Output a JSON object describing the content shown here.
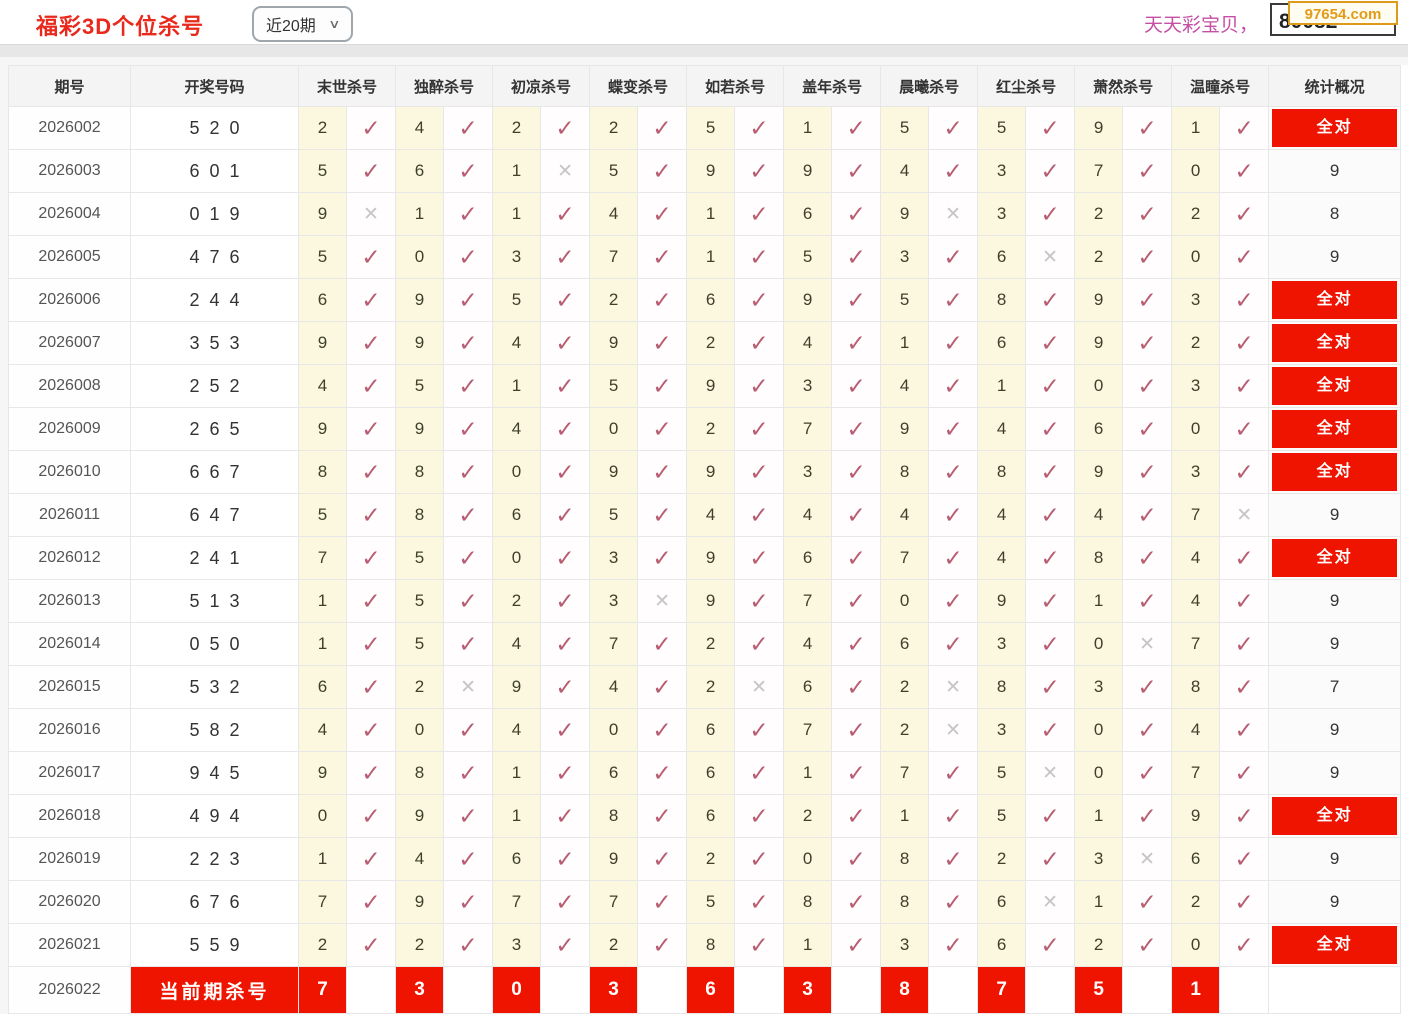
{
  "header": {
    "title": "福彩3D个位杀号",
    "period_select": {
      "value": "近20期"
    },
    "promo_text": "天天彩宝贝，",
    "contact_number": "80082",
    "watermark": "97654.com"
  },
  "colors": {
    "title_red": "#e8291c",
    "badge_red": "#ee1400",
    "check_pink": "#b85c72",
    "cross_gray": "#c6c6c6",
    "kill_number_cell_bg": "#fbf8df",
    "promo_pink": "#c44fa5",
    "watermark_orange": "#e39b17"
  },
  "table": {
    "columns": {
      "period": "期号",
      "draw": "开奖号码",
      "kills": [
        "末世杀号",
        "独醉杀号",
        "初凉杀号",
        "蝶变杀号",
        "如若杀号",
        "盖年杀号",
        "晨曦杀号",
        "红尘杀号",
        "萧然杀号",
        "温瞳杀号"
      ],
      "stats": "统计概况"
    },
    "marks": {
      "correct": "✓",
      "wrong": "✕"
    },
    "all_correct_label": "全对",
    "rows": [
      {
        "period": "2026002",
        "draw": "520",
        "kills": [
          [
            2,
            1
          ],
          [
            4,
            1
          ],
          [
            2,
            1
          ],
          [
            2,
            1
          ],
          [
            5,
            1
          ],
          [
            1,
            1
          ],
          [
            5,
            1
          ],
          [
            5,
            1
          ],
          [
            9,
            1
          ],
          [
            1,
            1
          ]
        ],
        "stat": "全对"
      },
      {
        "period": "2026003",
        "draw": "601",
        "kills": [
          [
            5,
            1
          ],
          [
            6,
            1
          ],
          [
            1,
            0
          ],
          [
            5,
            1
          ],
          [
            9,
            1
          ],
          [
            9,
            1
          ],
          [
            4,
            1
          ],
          [
            3,
            1
          ],
          [
            7,
            1
          ],
          [
            0,
            1
          ]
        ],
        "stat": "9"
      },
      {
        "period": "2026004",
        "draw": "019",
        "kills": [
          [
            9,
            0
          ],
          [
            1,
            1
          ],
          [
            1,
            1
          ],
          [
            4,
            1
          ],
          [
            1,
            1
          ],
          [
            6,
            1
          ],
          [
            9,
            0
          ],
          [
            3,
            1
          ],
          [
            2,
            1
          ],
          [
            2,
            1
          ]
        ],
        "stat": "8"
      },
      {
        "period": "2026005",
        "draw": "476",
        "kills": [
          [
            5,
            1
          ],
          [
            0,
            1
          ],
          [
            3,
            1
          ],
          [
            7,
            1
          ],
          [
            1,
            1
          ],
          [
            5,
            1
          ],
          [
            3,
            1
          ],
          [
            6,
            0
          ],
          [
            2,
            1
          ],
          [
            0,
            1
          ]
        ],
        "stat": "9"
      },
      {
        "period": "2026006",
        "draw": "244",
        "kills": [
          [
            6,
            1
          ],
          [
            9,
            1
          ],
          [
            5,
            1
          ],
          [
            2,
            1
          ],
          [
            6,
            1
          ],
          [
            9,
            1
          ],
          [
            5,
            1
          ],
          [
            8,
            1
          ],
          [
            9,
            1
          ],
          [
            3,
            1
          ]
        ],
        "stat": "全对"
      },
      {
        "period": "2026007",
        "draw": "353",
        "kills": [
          [
            9,
            1
          ],
          [
            9,
            1
          ],
          [
            4,
            1
          ],
          [
            9,
            1
          ],
          [
            2,
            1
          ],
          [
            4,
            1
          ],
          [
            1,
            1
          ],
          [
            6,
            1
          ],
          [
            9,
            1
          ],
          [
            2,
            1
          ]
        ],
        "stat": "全对"
      },
      {
        "period": "2026008",
        "draw": "252",
        "kills": [
          [
            4,
            1
          ],
          [
            5,
            1
          ],
          [
            1,
            1
          ],
          [
            5,
            1
          ],
          [
            9,
            1
          ],
          [
            3,
            1
          ],
          [
            4,
            1
          ],
          [
            1,
            1
          ],
          [
            0,
            1
          ],
          [
            3,
            1
          ]
        ],
        "stat": "全对"
      },
      {
        "period": "2026009",
        "draw": "265",
        "kills": [
          [
            9,
            1
          ],
          [
            9,
            1
          ],
          [
            4,
            1
          ],
          [
            0,
            1
          ],
          [
            2,
            1
          ],
          [
            7,
            1
          ],
          [
            9,
            1
          ],
          [
            4,
            1
          ],
          [
            6,
            1
          ],
          [
            0,
            1
          ]
        ],
        "stat": "全对"
      },
      {
        "period": "2026010",
        "draw": "667",
        "kills": [
          [
            8,
            1
          ],
          [
            8,
            1
          ],
          [
            0,
            1
          ],
          [
            9,
            1
          ],
          [
            9,
            1
          ],
          [
            3,
            1
          ],
          [
            8,
            1
          ],
          [
            8,
            1
          ],
          [
            9,
            1
          ],
          [
            3,
            1
          ]
        ],
        "stat": "全对"
      },
      {
        "period": "2026011",
        "draw": "647",
        "kills": [
          [
            5,
            1
          ],
          [
            8,
            1
          ],
          [
            6,
            1
          ],
          [
            5,
            1
          ],
          [
            4,
            1
          ],
          [
            4,
            1
          ],
          [
            4,
            1
          ],
          [
            4,
            1
          ],
          [
            4,
            1
          ],
          [
            7,
            0
          ]
        ],
        "stat": "9"
      },
      {
        "period": "2026012",
        "draw": "241",
        "kills": [
          [
            7,
            1
          ],
          [
            5,
            1
          ],
          [
            0,
            1
          ],
          [
            3,
            1
          ],
          [
            9,
            1
          ],
          [
            6,
            1
          ],
          [
            7,
            1
          ],
          [
            4,
            1
          ],
          [
            8,
            1
          ],
          [
            4,
            1
          ]
        ],
        "stat": "全对"
      },
      {
        "period": "2026013",
        "draw": "513",
        "kills": [
          [
            1,
            1
          ],
          [
            5,
            1
          ],
          [
            2,
            1
          ],
          [
            3,
            0
          ],
          [
            9,
            1
          ],
          [
            7,
            1
          ],
          [
            0,
            1
          ],
          [
            9,
            1
          ],
          [
            1,
            1
          ],
          [
            4,
            1
          ]
        ],
        "stat": "9"
      },
      {
        "period": "2026014",
        "draw": "050",
        "kills": [
          [
            1,
            1
          ],
          [
            5,
            1
          ],
          [
            4,
            1
          ],
          [
            7,
            1
          ],
          [
            2,
            1
          ],
          [
            4,
            1
          ],
          [
            6,
            1
          ],
          [
            3,
            1
          ],
          [
            0,
            0
          ],
          [
            7,
            1
          ]
        ],
        "stat": "9"
      },
      {
        "period": "2026015",
        "draw": "532",
        "kills": [
          [
            6,
            1
          ],
          [
            2,
            0
          ],
          [
            9,
            1
          ],
          [
            4,
            1
          ],
          [
            2,
            0
          ],
          [
            6,
            1
          ],
          [
            2,
            0
          ],
          [
            8,
            1
          ],
          [
            3,
            1
          ],
          [
            8,
            1
          ]
        ],
        "stat": "7"
      },
      {
        "period": "2026016",
        "draw": "582",
        "kills": [
          [
            4,
            1
          ],
          [
            0,
            1
          ],
          [
            4,
            1
          ],
          [
            0,
            1
          ],
          [
            6,
            1
          ],
          [
            7,
            1
          ],
          [
            2,
            0
          ],
          [
            3,
            1
          ],
          [
            0,
            1
          ],
          [
            4,
            1
          ]
        ],
        "stat": "9"
      },
      {
        "period": "2026017",
        "draw": "945",
        "kills": [
          [
            9,
            1
          ],
          [
            8,
            1
          ],
          [
            1,
            1
          ],
          [
            6,
            1
          ],
          [
            6,
            1
          ],
          [
            1,
            1
          ],
          [
            7,
            1
          ],
          [
            5,
            0
          ],
          [
            0,
            1
          ],
          [
            7,
            1
          ]
        ],
        "stat": "9"
      },
      {
        "period": "2026018",
        "draw": "494",
        "kills": [
          [
            0,
            1
          ],
          [
            9,
            1
          ],
          [
            1,
            1
          ],
          [
            8,
            1
          ],
          [
            6,
            1
          ],
          [
            2,
            1
          ],
          [
            1,
            1
          ],
          [
            5,
            1
          ],
          [
            1,
            1
          ],
          [
            9,
            1
          ]
        ],
        "stat": "全对"
      },
      {
        "period": "2026019",
        "draw": "223",
        "kills": [
          [
            1,
            1
          ],
          [
            4,
            1
          ],
          [
            6,
            1
          ],
          [
            9,
            1
          ],
          [
            2,
            1
          ],
          [
            0,
            1
          ],
          [
            8,
            1
          ],
          [
            2,
            1
          ],
          [
            3,
            0
          ],
          [
            6,
            1
          ]
        ],
        "stat": "9"
      },
      {
        "period": "2026020",
        "draw": "676",
        "kills": [
          [
            7,
            1
          ],
          [
            9,
            1
          ],
          [
            7,
            1
          ],
          [
            7,
            1
          ],
          [
            5,
            1
          ],
          [
            8,
            1
          ],
          [
            8,
            1
          ],
          [
            6,
            0
          ],
          [
            1,
            1
          ],
          [
            2,
            1
          ]
        ],
        "stat": "9"
      },
      {
        "period": "2026021",
        "draw": "559",
        "kills": [
          [
            2,
            1
          ],
          [
            2,
            1
          ],
          [
            3,
            1
          ],
          [
            2,
            1
          ],
          [
            8,
            1
          ],
          [
            1,
            1
          ],
          [
            3,
            1
          ],
          [
            6,
            1
          ],
          [
            2,
            1
          ],
          [
            0,
            1
          ]
        ],
        "stat": "全对"
      }
    ],
    "current_row": {
      "period": "2026022",
      "label": "当前期杀号",
      "kills": [
        7,
        3,
        0,
        3,
        6,
        3,
        8,
        7,
        5,
        1
      ]
    }
  }
}
